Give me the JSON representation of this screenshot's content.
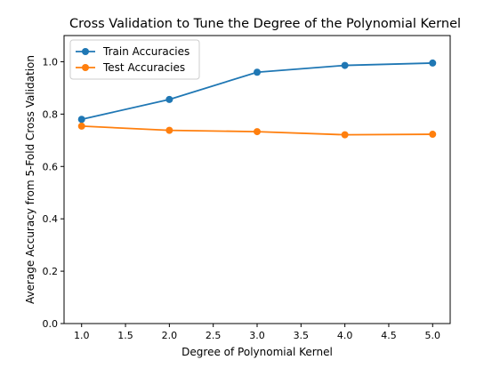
{
  "chart_data": {
    "type": "line",
    "title": "Cross Validation to Tune the Degree of the Polynomial Kernel",
    "xlabel": "Degree of Polynomial Kernel",
    "ylabel": "Average Accuracy from 5-Fold Cross Validation",
    "x": [
      1,
      2,
      3,
      4,
      5
    ],
    "xlim": [
      0.8,
      5.2
    ],
    "ylim": [
      0.0,
      1.1
    ],
    "xticks": [
      "1.0",
      "1.5",
      "2.0",
      "2.5",
      "3.0",
      "3.5",
      "4.0",
      "4.5",
      "5.0"
    ],
    "yticks": [
      "0.0",
      "0.2",
      "0.4",
      "0.6",
      "0.8",
      "1.0"
    ],
    "grid": false,
    "legend_position": "top-left",
    "series": [
      {
        "name": "Train Accuracies",
        "color": "#1f77b4",
        "values": [
          0.78,
          0.856,
          0.96,
          0.986,
          0.995
        ]
      },
      {
        "name": "Test Accuracies",
        "color": "#ff7f0e",
        "values": [
          0.754,
          0.738,
          0.733,
          0.721,
          0.723
        ]
      }
    ]
  }
}
